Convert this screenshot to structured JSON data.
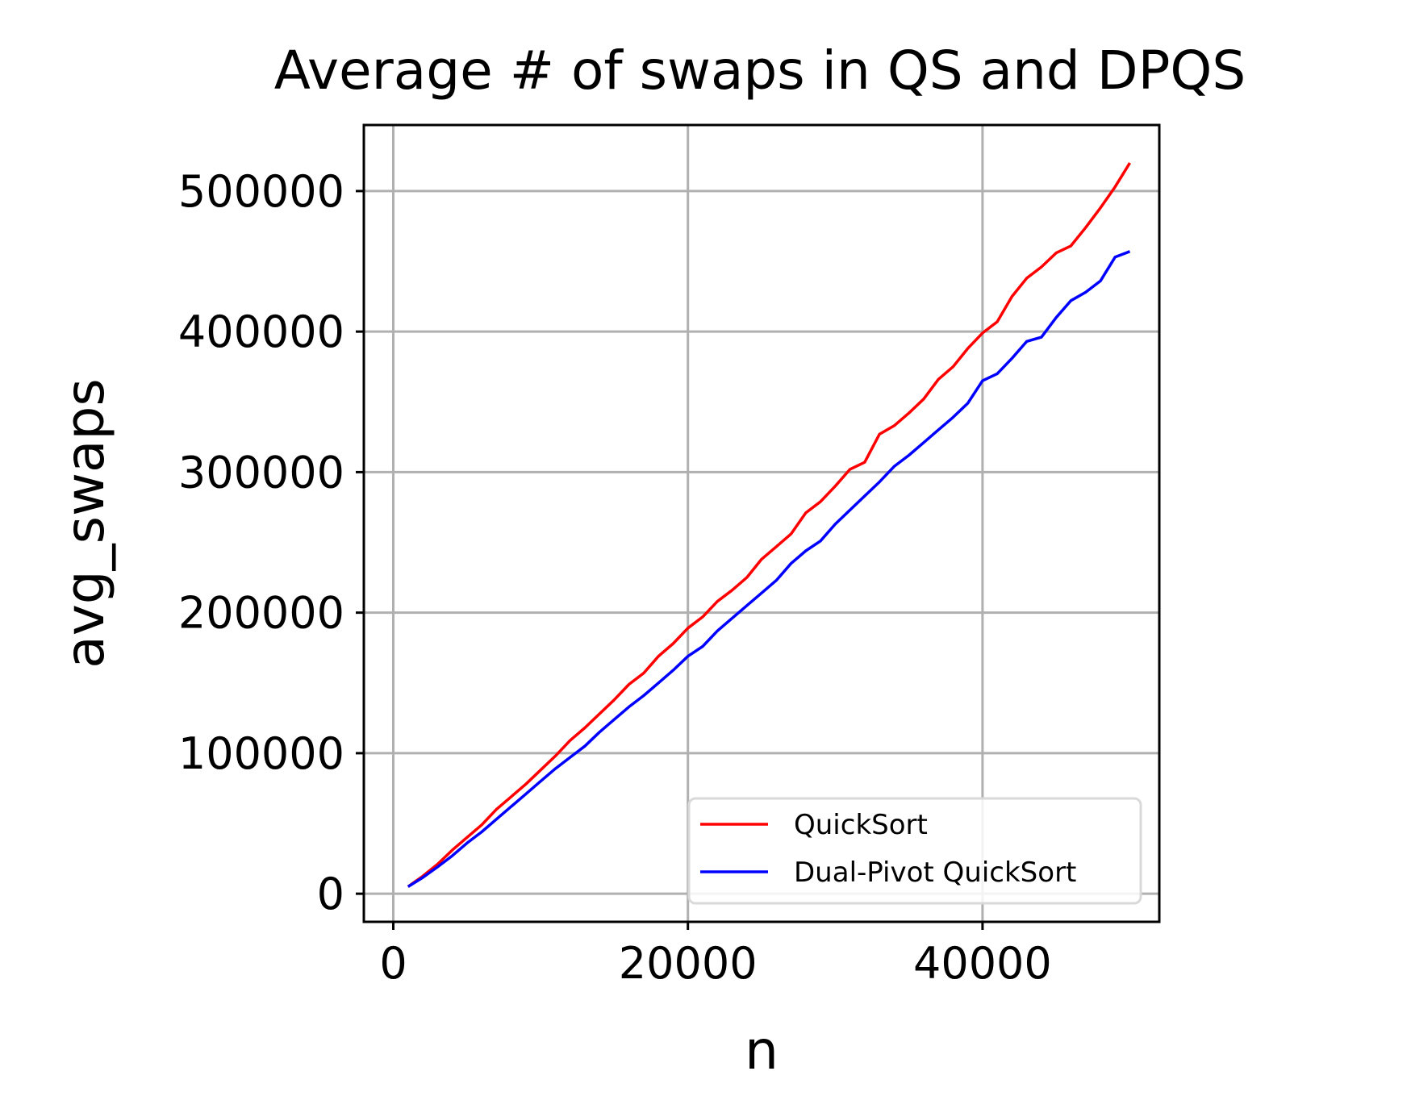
{
  "chart_data": {
    "type": "line",
    "title": "Average # of swaps in QS and DPQS",
    "xlabel": "n",
    "ylabel": "avg_swaps",
    "xlim": [
      -2000,
      52000
    ],
    "ylim": [
      -20000,
      547000
    ],
    "xticks": [
      0,
      20000,
      40000
    ],
    "xtick_labels": [
      "0",
      "20000",
      "40000"
    ],
    "yticks": [
      0,
      100000,
      200000,
      300000,
      400000,
      500000
    ],
    "ytick_labels": [
      "0",
      "100000",
      "200000",
      "300000",
      "400000",
      "500000"
    ],
    "grid": true,
    "legend": "lower-right",
    "x": [
      1000,
      2000,
      3000,
      4000,
      5000,
      6000,
      7000,
      8000,
      9000,
      10000,
      11000,
      12000,
      13000,
      14000,
      15000,
      16000,
      17000,
      18000,
      19000,
      20000,
      21000,
      22000,
      23000,
      24000,
      25000,
      26000,
      27000,
      28000,
      29000,
      30000,
      31000,
      32000,
      33000,
      34000,
      35000,
      36000,
      37000,
      38000,
      39000,
      40000,
      41000,
      42000,
      43000,
      44000,
      45000,
      46000,
      47000,
      48000,
      49000,
      50000
    ],
    "series": [
      {
        "name": "QuickSort",
        "color": "#ff0000",
        "values": [
          5000,
          12500,
          21000,
          31000,
          40000,
          49000,
          60000,
          69000,
          78000,
          88000,
          98000,
          109000,
          118000,
          128000,
          138000,
          149000,
          157000,
          169000,
          178000,
          189000,
          197000,
          208000,
          216000,
          225000,
          238000,
          247000,
          256000,
          271000,
          279000,
          290000,
          302000,
          307000,
          327000,
          333000,
          342000,
          352000,
          366000,
          375000,
          388000,
          399000,
          407000,
          425000,
          438000,
          446000,
          456000,
          461000,
          474000,
          488000,
          503000,
          520000
        ]
      },
      {
        "name": "Dual-Pivot QuickSort",
        "color": "#0000ff",
        "values": [
          5000,
          11500,
          19000,
          27000,
          36000,
          44000,
          53000,
          62000,
          71000,
          80000,
          89000,
          97000,
          105000,
          115000,
          124000,
          133000,
          141000,
          150000,
          159000,
          169000,
          176000,
          187000,
          196000,
          205000,
          214000,
          223000,
          235000,
          244000,
          251000,
          263000,
          273000,
          283000,
          293000,
          304000,
          312000,
          321000,
          330000,
          339000,
          349000,
          365000,
          370000,
          381000,
          393000,
          396000,
          410000,
          422000,
          428000,
          436000,
          453000,
          457000
        ]
      }
    ]
  }
}
